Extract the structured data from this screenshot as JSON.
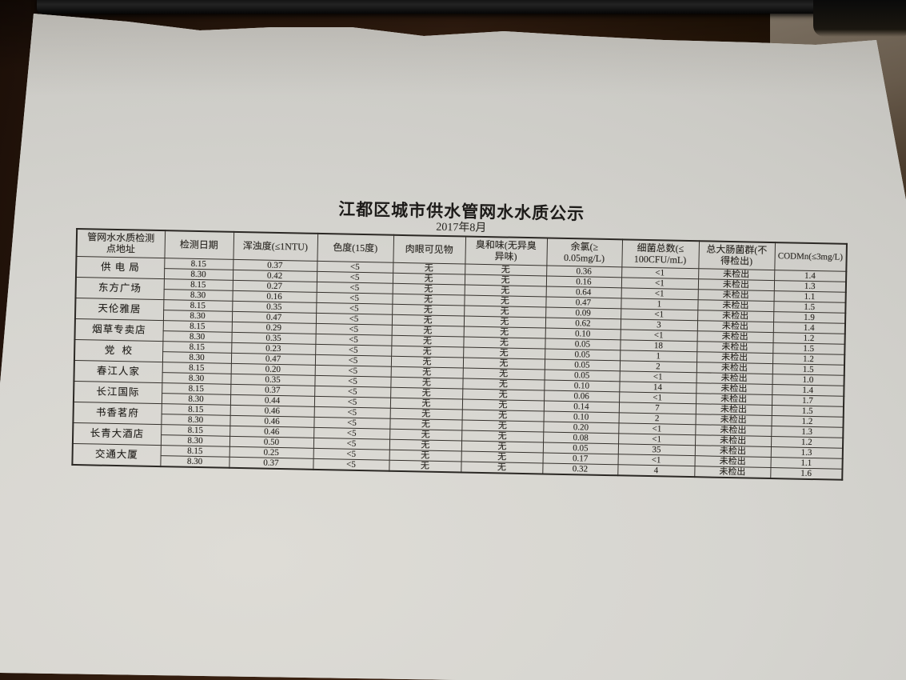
{
  "photo": {
    "scene": "photograph of a printed water-quality notice lying on a dark wooden desk",
    "colors": {
      "paper": "#d6d4cf",
      "ink": "#262422",
      "desk_wood": "#311c0e",
      "black_object": "#121212",
      "desk_sheen": "#6e6355"
    }
  },
  "document": {
    "title": "江都区城市供水管网水水质公示",
    "subtitle": "2017年8月",
    "table": {
      "headers": [
        "管网水水质检测\n点地址",
        "检测日期",
        "浑浊度(≤1NTU)",
        "色度(15度)",
        "肉眼可见物",
        "臭和味(无异臭\n异味)",
        "余氯(≥\n0.05mg/L)",
        "细菌总数(≤\n100CFU/mL)",
        "总大肠菌群(不\n得检出)",
        "CODMn(≤3mg/L)"
      ],
      "sites": [
        {
          "name": "供 电 局",
          "rows": [
            [
              "8.15",
              "0.37",
              "<5",
              "无",
              "无",
              "0.36",
              "<1",
              "未检出",
              "1.4"
            ],
            [
              "8.30",
              "0.42",
              "<5",
              "无",
              "无",
              "0.16",
              "<1",
              "未检出",
              "1.3"
            ]
          ]
        },
        {
          "name": "东方广场",
          "rows": [
            [
              "8.15",
              "0.27",
              "<5",
              "无",
              "无",
              "0.64",
              "<1",
              "未检出",
              "1.1"
            ],
            [
              "8.30",
              "0.16",
              "<5",
              "无",
              "无",
              "0.47",
              "1",
              "未检出",
              "1.5"
            ]
          ]
        },
        {
          "name": "天伦雅居",
          "rows": [
            [
              "8.15",
              "0.35",
              "<5",
              "无",
              "无",
              "0.09",
              "<1",
              "未检出",
              "1.9"
            ],
            [
              "8.30",
              "0.47",
              "<5",
              "无",
              "无",
              "0.62",
              "3",
              "未检出",
              "1.4"
            ]
          ]
        },
        {
          "name": "烟草专卖店",
          "rows": [
            [
              "8.15",
              "0.29",
              "<5",
              "无",
              "无",
              "0.10",
              "<1",
              "未检出",
              "1.2"
            ],
            [
              "8.30",
              "0.35",
              "<5",
              "无",
              "无",
              "0.05",
              "18",
              "未检出",
              "1.5"
            ]
          ]
        },
        {
          "name": "党  校",
          "rows": [
            [
              "8.15",
              "0.23",
              "<5",
              "无",
              "无",
              "0.05",
              "1",
              "未检出",
              "1.2"
            ],
            [
              "8.30",
              "0.47",
              "<5",
              "无",
              "无",
              "0.05",
              "2",
              "未检出",
              "1.5"
            ]
          ]
        },
        {
          "name": "春江人家",
          "rows": [
            [
              "8.15",
              "0.20",
              "<5",
              "无",
              "无",
              "0.05",
              "<1",
              "未检出",
              "1.0"
            ],
            [
              "8.30",
              "0.35",
              "<5",
              "无",
              "无",
              "0.10",
              "14",
              "未检出",
              "1.4"
            ]
          ]
        },
        {
          "name": "长江国际",
          "rows": [
            [
              "8.15",
              "0.37",
              "<5",
              "无",
              "无",
              "0.06",
              "<1",
              "未检出",
              "1.7"
            ],
            [
              "8.30",
              "0.44",
              "<5",
              "无",
              "无",
              "0.14",
              "7",
              "未检出",
              "1.5"
            ]
          ]
        },
        {
          "name": "书香茗府",
          "rows": [
            [
              "8.15",
              "0.46",
              "<5",
              "无",
              "无",
              "0.10",
              "2",
              "未检出",
              "1.2"
            ],
            [
              "8.30",
              "0.46",
              "<5",
              "无",
              "无",
              "0.20",
              "<1",
              "未检出",
              "1.3"
            ]
          ]
        },
        {
          "name": "长青大酒店",
          "rows": [
            [
              "8.15",
              "0.46",
              "<5",
              "无",
              "无",
              "0.08",
              "<1",
              "未检出",
              "1.2"
            ],
            [
              "8.30",
              "0.50",
              "<5",
              "无",
              "无",
              "0.05",
              "35",
              "未检出",
              "1.3"
            ]
          ]
        },
        {
          "name": "交通大厦",
          "rows": [
            [
              "8.15",
              "0.25",
              "<5",
              "无",
              "无",
              "0.17",
              "<1",
              "未检出",
              "1.1"
            ],
            [
              "8.30",
              "0.37",
              "<5",
              "无",
              "无",
              "0.32",
              "4",
              "未检出",
              "1.6"
            ]
          ]
        }
      ]
    }
  }
}
